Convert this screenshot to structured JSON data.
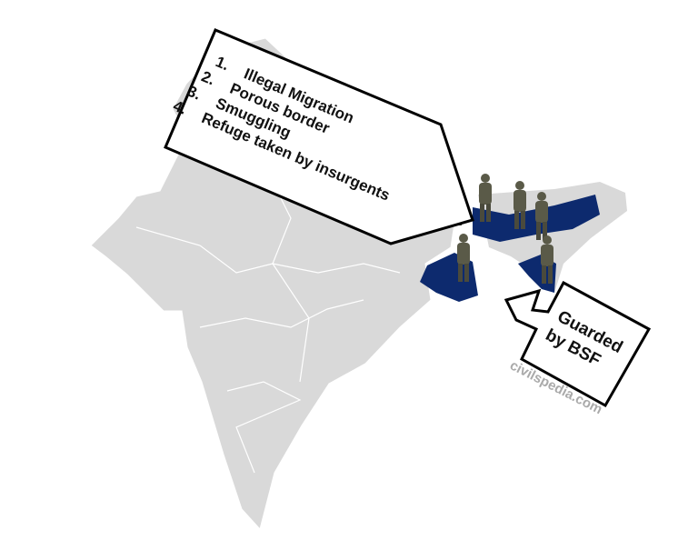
{
  "callout_issues": {
    "items": [
      {
        "num": "1.",
        "text": "Illegal Migration"
      },
      {
        "num": "2.",
        "text": "Porous border"
      },
      {
        "num": "3.",
        "text": "Smuggling"
      },
      {
        "num": "4.",
        "text": "Refuge taken by insurgents"
      }
    ]
  },
  "callout_guard": {
    "line1": "Guarded",
    "line2": "by BSF"
  },
  "watermark": "civilspedia.com",
  "colors": {
    "land": "#d9d9d9",
    "border_states": "#0d2a6e",
    "state_lines": "#ffffff",
    "soldier": "#5a5a48"
  }
}
